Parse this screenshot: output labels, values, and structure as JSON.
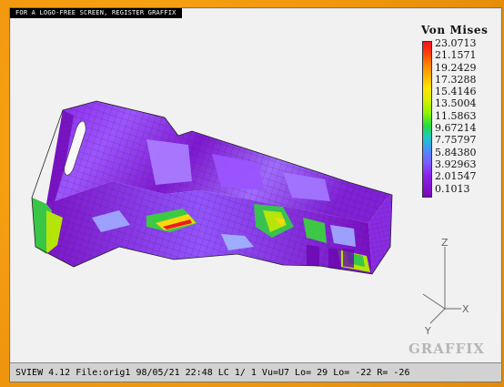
{
  "banner": "FOR A LOGO-FREE SCREEN, REGISTER GRAFFIX",
  "legend": {
    "title": "Von Mises",
    "values": [
      "23.0713",
      "21.1571",
      "19.2429",
      "17.3288",
      "15.4146",
      "13.5004",
      "11.5863",
      "9.67214",
      "7.75797",
      "5.84380",
      "3.92963",
      "2.01547",
      "0.1013"
    ]
  },
  "axes": {
    "z": "Z",
    "x": "X",
    "y": "Y"
  },
  "logo": "GRAFFIX",
  "status": "SVIEW 4.12 File:orig1 98/05/21 22:48    LC  1/  1 Vu=U7 Lo=  29 Lo= -22 R= -26",
  "colors": {
    "purple": "#7d12c8",
    "violet": "#9f56ff",
    "light_blue": "#9fa7ff",
    "green": "#34cf3a",
    "yellow_green": "#b8f000",
    "yellow": "#ffe000",
    "red": "#f31818"
  }
}
